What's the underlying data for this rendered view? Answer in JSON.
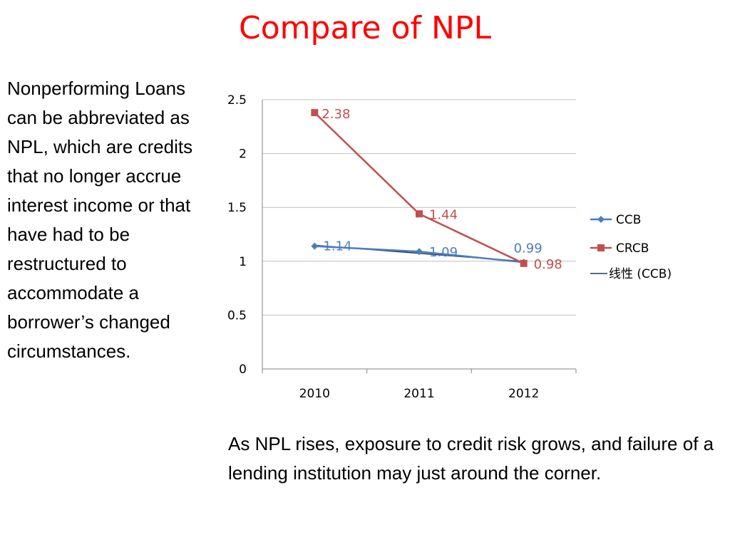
{
  "slide": {
    "title": "Compare of NPL",
    "side_text": "Nonperforming Loans can be abbreviated as NPL, which are credits that no longer accrue interest income or that have had to be restructured to accommodate a borrower’s changed circumstances.",
    "bottom_text": "As NPL rises, exposure to credit risk grows, and failure of a lending institution may just around the corner.",
    "title_color": "#ff0000"
  },
  "chart_data": {
    "type": "line",
    "title": "",
    "xlabel": "",
    "ylabel": "",
    "categories": [
      "2010",
      "2011",
      "2012"
    ],
    "ylim": [
      0,
      2.5
    ],
    "yticks": [
      "0",
      "0.5",
      "1",
      "1.5",
      "2",
      "2.5"
    ],
    "grid": true,
    "legend_position": "right",
    "series": [
      {
        "name": "CCB",
        "values": [
          1.14,
          1.09,
          0.99
        ],
        "data_labels": [
          "1.14",
          "1.09",
          "0.99"
        ],
        "color": "#4a7ebb",
        "marker": "diamond"
      },
      {
        "name": "CRCB",
        "values": [
          2.38,
          1.44,
          0.98
        ],
        "data_labels": [
          "2.38",
          "1.44",
          "0.98"
        ],
        "color": "#c0504d",
        "marker": "square"
      }
    ],
    "trendline": {
      "name": "线性 (CCB)",
      "of_series": "CCB",
      "type": "linear",
      "color": "#1f3864"
    }
  }
}
